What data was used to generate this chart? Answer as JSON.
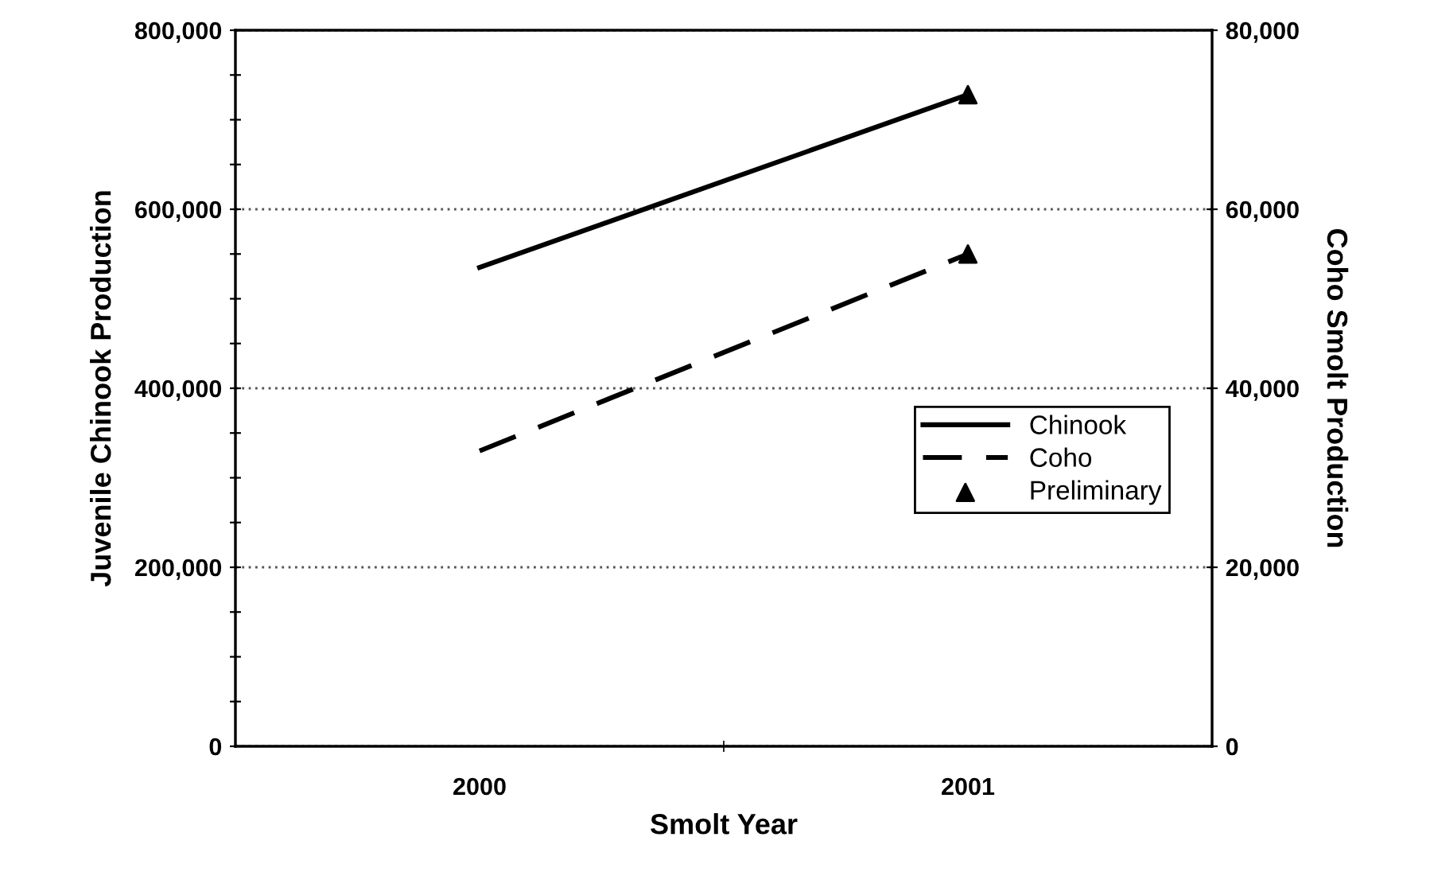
{
  "chart_data": {
    "type": "line",
    "xlabel": "Smolt Year",
    "ylabel": "Juvenile Chinook Production",
    "y2label": "Coho Smolt Production",
    "categories": [
      "2000",
      "2001"
    ],
    "series": [
      {
        "name": "Chinook",
        "color": "#000000",
        "values": [
          535000,
          728000
        ],
        "line_style": "solid",
        "marker": "none"
      },
      {
        "name": "Coho",
        "color": "#000000",
        "values": [
          33000,
          55000
        ],
        "axis": "y2",
        "line_style": "dashed",
        "marker": "none"
      },
      {
        "name": "Preliminary",
        "type": "scatter",
        "color": "#000000",
        "values": [
          null,
          728000
        ],
        "marker": "triangle"
      },
      {
        "type": "scatter",
        "color": "#000000",
        "values": [
          null,
          55000
        ],
        "axis": "y2",
        "marker": "triangle"
      }
    ],
    "ylim": [
      0,
      800000
    ],
    "yticks": [
      {
        "value": 0,
        "label": "0"
      },
      {
        "value": 50000,
        "label": null
      },
      {
        "value": 100000,
        "label": null
      },
      {
        "value": 150000,
        "label": null
      },
      {
        "value": 200000,
        "label": "200,000"
      },
      {
        "value": 250000,
        "label": null
      },
      {
        "value": 300000,
        "label": null
      },
      {
        "value": 350000,
        "label": null
      },
      {
        "value": 400000,
        "label": "400,000"
      },
      {
        "value": 450000,
        "label": null
      },
      {
        "value": 500000,
        "label": null
      },
      {
        "value": 550000,
        "label": null
      },
      {
        "value": 600000,
        "label": "600,000"
      },
      {
        "value": 650000,
        "label": null
      },
      {
        "value": 700000,
        "label": null
      },
      {
        "value": 750000,
        "label": null
      },
      {
        "value": 800000,
        "label": "800,000"
      }
    ],
    "y2lim": [
      0,
      80000
    ],
    "y2ticks": [
      {
        "value": 0,
        "label": "0"
      },
      {
        "value": 20000,
        "label": "20,000"
      },
      {
        "value": 40000,
        "label": "40,000"
      },
      {
        "value": 60000,
        "label": "60,000"
      },
      {
        "value": 80000,
        "label": "80,000"
      }
    ],
    "grid": "y",
    "legend": "right"
  }
}
